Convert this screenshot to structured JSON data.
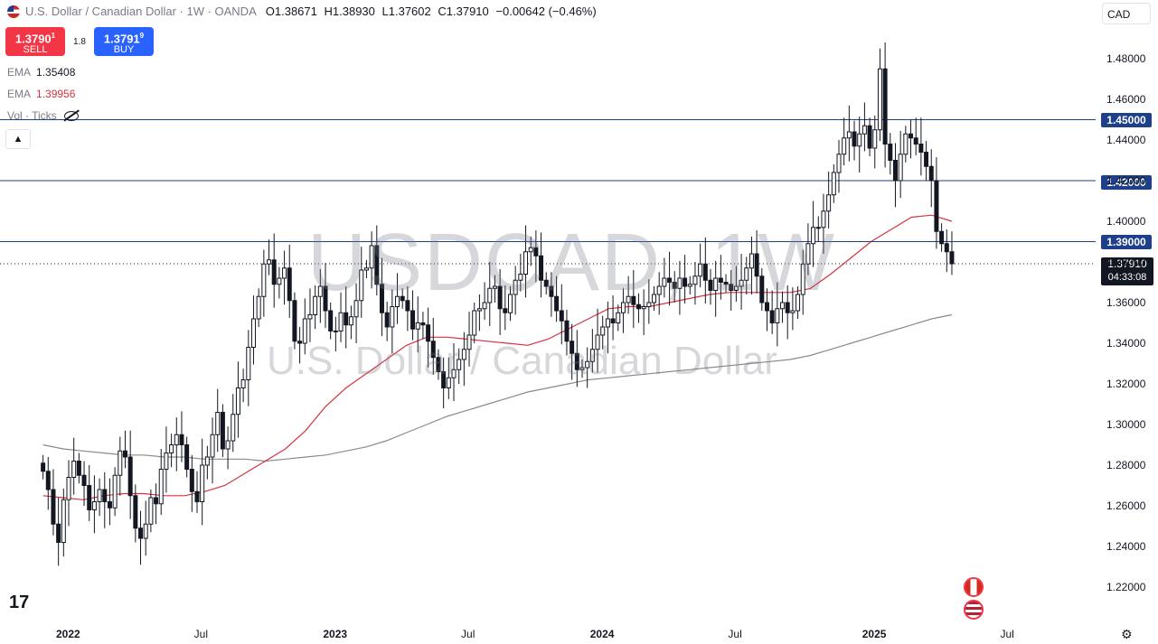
{
  "header": {
    "title": "U.S. Dollar / Canadian Dollar · 1W · OANDA",
    "ohlc": {
      "o_label": "O",
      "o": "1.38671",
      "h_label": "H",
      "h": "1.38930",
      "l_label": "L",
      "l": "1.37602",
      "c_label": "C",
      "c": "1.37910"
    },
    "change": "−0.00642 (−0.46%)",
    "currency": "CAD"
  },
  "trade": {
    "sell_price": "1.3790",
    "sell_price_sup": "1",
    "sell_label": "SELL",
    "spread": "1.8",
    "buy_price": "1.3791",
    "buy_price_sup": "9",
    "buy_label": "BUY"
  },
  "indicators": [
    {
      "name": "EMA",
      "value": "1.35408"
    },
    {
      "name": "EMA",
      "value": "1.39956"
    },
    {
      "name": "Vol · Ticks",
      "value": ""
    }
  ],
  "watermark": {
    "symbol": "USDCAD, 1W",
    "description": "U.S. Dollar / Canadian Dollar"
  },
  "price_tags": {
    "level_1": "1.45000",
    "level_2": "1.42000",
    "level_3": "1.39000",
    "last": "1.37910",
    "countdown": "04:33:08"
  },
  "colors": {
    "up": "#131722",
    "down": "#131722",
    "ema_fast": "#d6333f",
    "ema_slow": "#8a8a8a",
    "hline": "#1e3f8a"
  },
  "chart_data": {
    "type": "candlestick",
    "title": "U.S. Dollar / Canadian Dollar · 1W · OANDA",
    "ylim": [
      1.21,
      1.49
    ],
    "y_ticks": [
      "1.48000",
      "1.46000",
      "1.44000",
      "1.42000",
      "1.40000",
      "1.38000",
      "1.36000",
      "1.34000",
      "1.32000",
      "1.30000",
      "1.28000",
      "1.26000",
      "1.24000",
      "1.22000"
    ],
    "x_ticks": [
      {
        "label": "2022",
        "year": true,
        "date": "2022-01-03"
      },
      {
        "label": "Jul",
        "year": false,
        "date": "2022-07-04"
      },
      {
        "label": "2023",
        "year": true,
        "date": "2023-01-02"
      },
      {
        "label": "Jul",
        "year": false,
        "date": "2023-07-03"
      },
      {
        "label": "2024",
        "year": true,
        "date": "2024-01-01"
      },
      {
        "label": "Jul",
        "year": false,
        "date": "2024-07-01"
      },
      {
        "label": "2025",
        "year": true,
        "date": "2025-01-06"
      },
      {
        "label": "Jul",
        "year": false,
        "date": "2025-07-07"
      }
    ],
    "horizontal_lines": [
      1.45,
      1.42,
      1.39
    ],
    "last_price": 1.3791,
    "close_series": {
      "start": "2021-11-29",
      "interval_weeks": 1,
      "values": [
        1.277,
        1.268,
        1.251,
        1.242,
        1.263,
        1.274,
        1.282,
        1.275,
        1.27,
        1.258,
        1.262,
        1.268,
        1.262,
        1.259,
        1.275,
        1.287,
        1.284,
        1.265,
        1.249,
        1.244,
        1.251,
        1.264,
        1.261,
        1.278,
        1.286,
        1.29,
        1.295,
        1.29,
        1.278,
        1.267,
        1.262,
        1.28,
        1.284,
        1.295,
        1.306,
        1.288,
        1.292,
        1.305,
        1.318,
        1.322,
        1.338,
        1.352,
        1.363,
        1.379,
        1.381,
        1.369,
        1.372,
        1.377,
        1.361,
        1.341,
        1.34,
        1.352,
        1.354,
        1.363,
        1.368,
        1.356,
        1.346,
        1.346,
        1.355,
        1.349,
        1.353,
        1.361,
        1.376,
        1.377,
        1.388,
        1.369,
        1.355,
        1.348,
        1.358,
        1.363,
        1.361,
        1.356,
        1.347,
        1.35,
        1.349,
        1.341,
        1.333,
        1.326,
        1.318,
        1.323,
        1.327,
        1.332,
        1.337,
        1.344,
        1.356,
        1.357,
        1.36,
        1.367,
        1.368,
        1.357,
        1.355,
        1.364,
        1.371,
        1.374,
        1.385,
        1.387,
        1.383,
        1.371,
        1.368,
        1.363,
        1.356,
        1.351,
        1.341,
        1.335,
        1.327,
        1.328,
        1.331,
        1.337,
        1.344,
        1.348,
        1.352,
        1.35,
        1.355,
        1.36,
        1.363,
        1.359,
        1.357,
        1.358,
        1.36,
        1.364,
        1.368,
        1.372,
        1.37,
        1.367,
        1.372,
        1.368,
        1.369,
        1.373,
        1.379,
        1.371,
        1.366,
        1.372,
        1.37,
        1.369,
        1.366,
        1.368,
        1.371,
        1.377,
        1.384,
        1.373,
        1.36,
        1.356,
        1.35,
        1.357,
        1.36,
        1.355,
        1.356,
        1.364,
        1.379,
        1.389,
        1.397,
        1.397,
        1.405,
        1.413,
        1.424,
        1.433,
        1.441,
        1.444,
        1.437,
        1.443,
        1.447,
        1.436,
        1.445,
        1.475,
        1.438,
        1.43,
        1.42,
        1.433,
        1.443,
        1.441,
        1.438,
        1.434,
        1.427,
        1.42,
        1.395,
        1.389,
        1.385,
        1.3791
      ]
    },
    "series": [
      {
        "name": "EMA 1.35408",
        "values_note": "slow EMA",
        "from": "2021-11-29",
        "values": [
          1.29,
          1.288,
          1.287,
          1.286,
          1.285,
          1.285,
          1.284,
          1.284,
          1.283,
          1.283,
          1.283,
          1.282,
          1.283,
          1.284,
          1.285,
          1.287,
          1.289,
          1.292,
          1.296,
          1.3,
          1.304,
          1.307,
          1.31,
          1.313,
          1.316,
          1.318,
          1.32,
          1.322,
          1.323,
          1.324,
          1.325,
          1.326,
          1.327,
          1.328,
          1.329,
          1.33,
          1.331,
          1.332,
          1.334,
          1.337,
          1.34,
          1.343,
          1.346,
          1.349,
          1.352,
          1.354
        ]
      },
      {
        "name": "EMA 1.39956",
        "values_note": "fast EMA",
        "from": "2021-11-29",
        "values": [
          1.265,
          1.264,
          1.263,
          1.265,
          1.266,
          1.266,
          1.265,
          1.265,
          1.267,
          1.27,
          1.276,
          1.282,
          1.288,
          1.297,
          1.309,
          1.318,
          1.325,
          1.332,
          1.339,
          1.343,
          1.343,
          1.342,
          1.341,
          1.34,
          1.339,
          1.342,
          1.347,
          1.352,
          1.357,
          1.358,
          1.358,
          1.36,
          1.362,
          1.364,
          1.365,
          1.365,
          1.365,
          1.365,
          1.367,
          1.374,
          1.382,
          1.39,
          1.396,
          1.402,
          1.403,
          1.4
        ]
      }
    ]
  }
}
